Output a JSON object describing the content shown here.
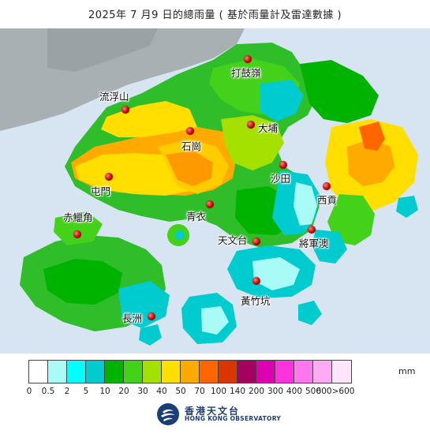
{
  "title": "2025年 7  月9   日的總雨量 ( 基於雨量計及雷達數據 )",
  "map": {
    "stations": [
      {
        "name": "打鼓嶺"
      },
      {
        "name": "流浮山"
      },
      {
        "name": "大埔"
      },
      {
        "name": "石崗"
      },
      {
        "name": "屯門"
      },
      {
        "name": "沙田"
      },
      {
        "name": "西貢"
      },
      {
        "name": "赤鱲角"
      },
      {
        "name": "青衣"
      },
      {
        "name": "天文台"
      },
      {
        "name": "將軍澳"
      },
      {
        "name": "黃竹坑"
      },
      {
        "name": "長洲"
      }
    ]
  },
  "legend": {
    "unit": "mm",
    "tick_labels": [
      "0",
      "0.5",
      "2",
      "5",
      "10",
      "20",
      "30",
      "40",
      "50",
      "70",
      "100",
      "140",
      "200",
      "300",
      "400",
      "500",
      "600>600"
    ],
    "colors": [
      "#ffffff",
      "#a8fbf7",
      "#00ffff",
      "#00ccd0",
      "#00b300",
      "#44d11a",
      "#a4e000",
      "#ffde00",
      "#ffaa00",
      "#ff6600",
      "#d93600",
      "#a60060",
      "#dd00b0",
      "#ff33dd",
      "#ff77ee",
      "#ffaaf4",
      "#ffe6fb"
    ]
  },
  "footer": {
    "org_zh": "香港天文台",
    "org_en": "HONG KONG OBSERVATORY"
  }
}
